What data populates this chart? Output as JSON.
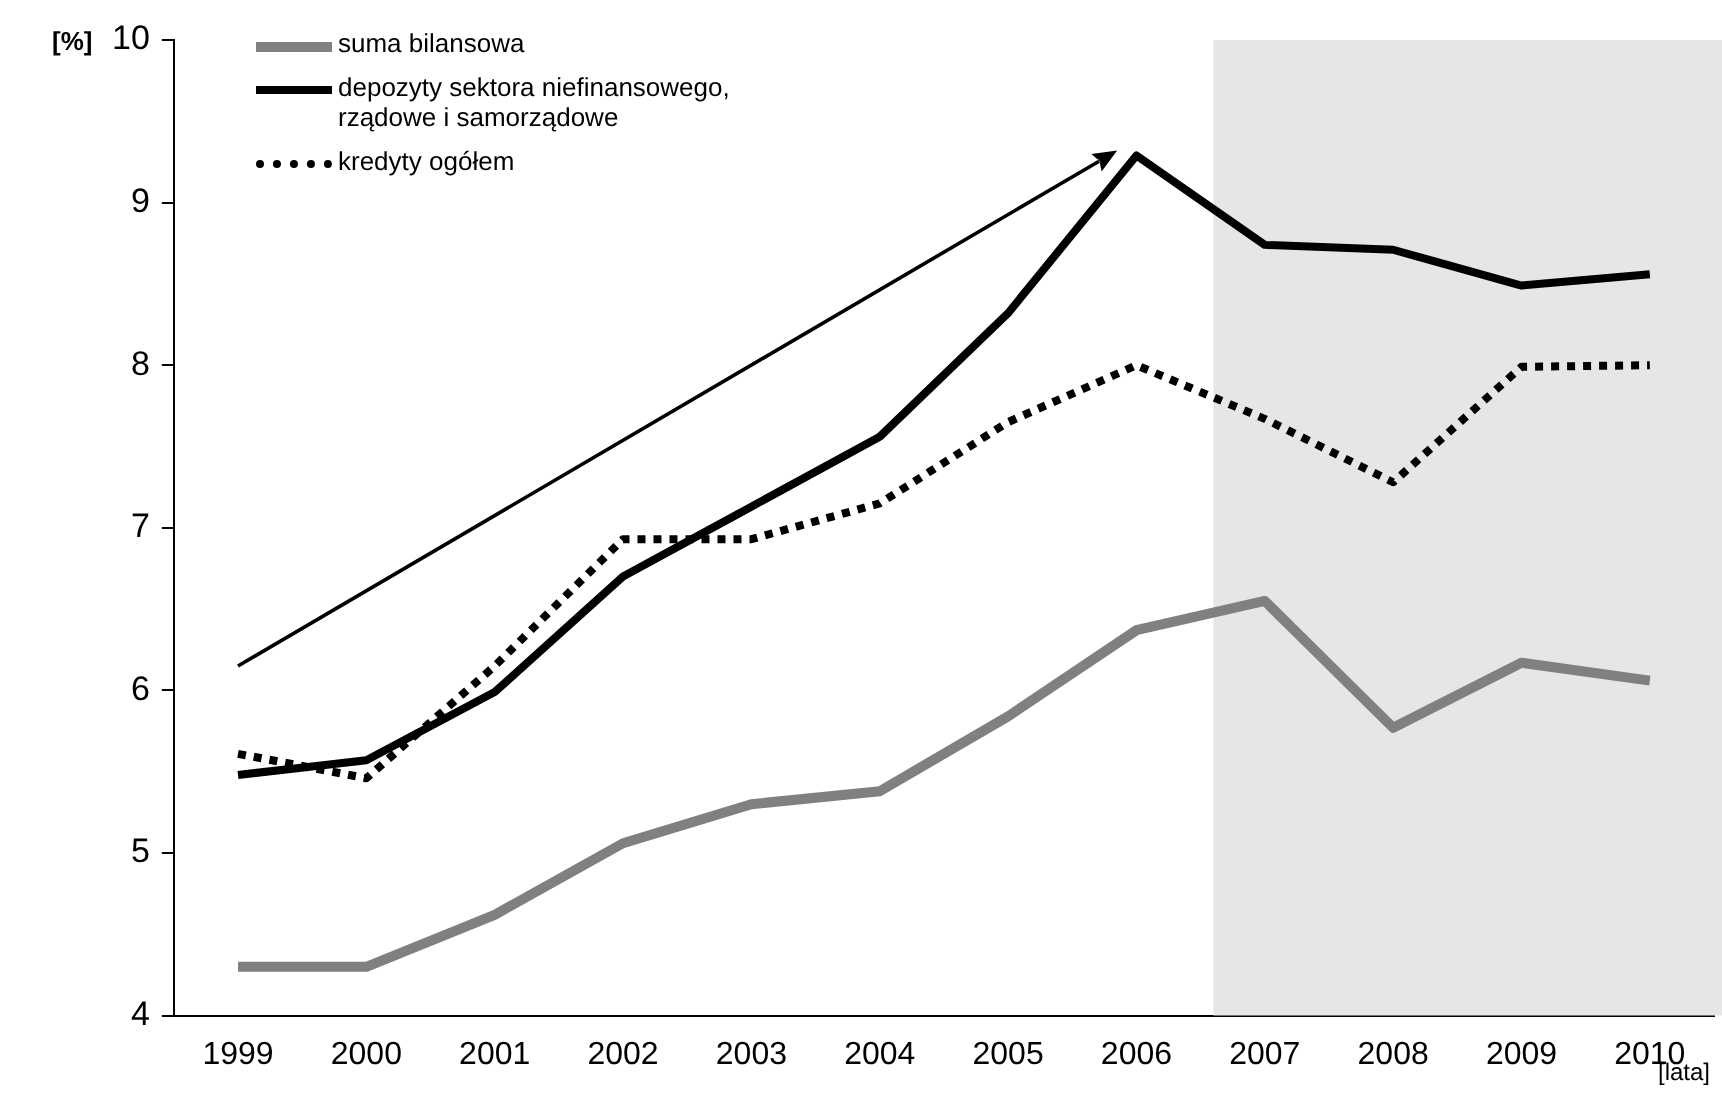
{
  "chart_data": {
    "type": "line",
    "ylabel": "[%]",
    "xlabel": "[lata]",
    "categories": [
      "1999",
      "2000",
      "2001",
      "2002",
      "2003",
      "2004",
      "2005",
      "2006",
      "2007",
      "2008",
      "2009",
      "2010"
    ],
    "series": [
      {
        "name": "suma bilansowa",
        "color": "#808080",
        "line_style": "solid",
        "values": [
          4.3,
          4.3,
          4.62,
          5.06,
          5.3,
          5.38,
          5.84,
          6.37,
          6.55,
          5.77,
          6.17,
          6.06
        ]
      },
      {
        "name": "depozyty sektora niefinansowego, rządowe i samorządowe",
        "color": "#000000",
        "line_style": "solid",
        "values": [
          5.48,
          5.57,
          5.99,
          6.7,
          7.13,
          7.56,
          8.32,
          9.29,
          8.74,
          8.71,
          8.49,
          8.56
        ]
      },
      {
        "name": "kredyty ogółem",
        "color": "#000000",
        "line_style": "dotted",
        "values": [
          5.61,
          5.46,
          6.15,
          6.93,
          6.93,
          7.15,
          7.65,
          8.0,
          7.67,
          7.28,
          7.99,
          8.0
        ]
      }
    ],
    "ylim": [
      4,
      10
    ],
    "yticks": [
      4,
      5,
      6,
      7,
      8,
      9,
      10
    ],
    "grid": false,
    "legend": "top left",
    "marker": "none",
    "bands": [
      {
        "axis": "x",
        "from": "2007",
        "to": "2010",
        "color": "#e6e6e6"
      }
    ]
  }
}
